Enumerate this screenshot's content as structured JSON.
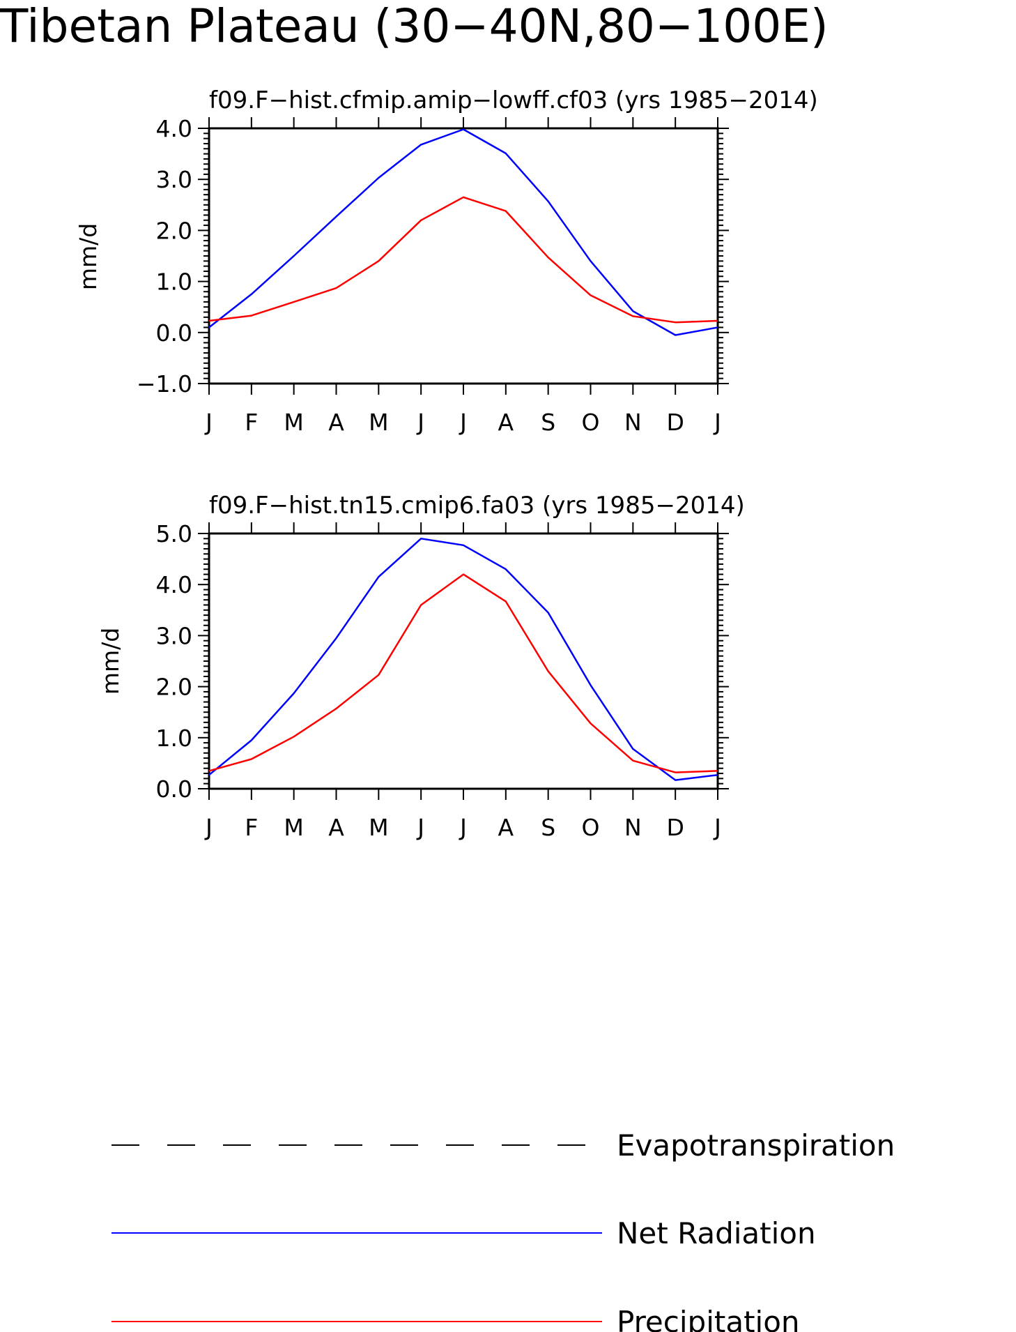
{
  "title": "Tibetan Plateau (30−40N,80−100E)",
  "legend": {
    "items": [
      {
        "label": "Evapotranspiration",
        "color": "#000000",
        "style": "dashed"
      },
      {
        "label": "Net Radiation",
        "color": "#0000ff",
        "style": "solid"
      },
      {
        "label": "Precipitation",
        "color": "#ff0000",
        "style": "solid"
      }
    ]
  },
  "chart_data": [
    {
      "type": "line",
      "title": "f09.F−hist.cfmip.amip−lowff.cf03 (yrs 1985−2014)",
      "ylabel": "mm/d",
      "xlabel": "",
      "categories": [
        "J",
        "F",
        "M",
        "A",
        "M",
        "J",
        "J",
        "A",
        "S",
        "O",
        "N",
        "D",
        "J"
      ],
      "ylim": [
        -1.0,
        4.0
      ],
      "yticks": [
        "−1.0",
        "0.0",
        "1.0",
        "2.0",
        "3.0",
        "4.0"
      ],
      "ytick_values": [
        -1,
        0,
        1,
        2,
        3,
        4
      ],
      "series": [
        {
          "name": "Net Radiation",
          "color": "#0000ff",
          "values": [
            0.1,
            0.75,
            1.5,
            2.27,
            3.03,
            3.68,
            3.98,
            3.51,
            2.57,
            1.4,
            0.42,
            -0.05,
            0.1
          ]
        },
        {
          "name": "Precipitation",
          "color": "#ff0000",
          "values": [
            0.23,
            0.33,
            0.6,
            0.87,
            1.4,
            2.2,
            2.65,
            2.38,
            1.47,
            0.73,
            0.32,
            0.2,
            0.23
          ]
        }
      ]
    },
    {
      "type": "line",
      "title": "f09.F−hist.tn15.cmip6.fa03 (yrs 1985−2014)",
      "ylabel": "mm/d",
      "xlabel": "",
      "categories": [
        "J",
        "F",
        "M",
        "A",
        "M",
        "J",
        "J",
        "A",
        "S",
        "O",
        "N",
        "D",
        "J"
      ],
      "ylim": [
        0.0,
        5.0
      ],
      "yticks": [
        "0.0",
        "1.0",
        "2.0",
        "3.0",
        "4.0",
        "5.0"
      ],
      "ytick_values": [
        0,
        1,
        2,
        3,
        4,
        5
      ],
      "series": [
        {
          "name": "Net Radiation",
          "color": "#0000ff",
          "values": [
            0.27,
            0.95,
            1.87,
            2.95,
            4.15,
            4.9,
            4.77,
            4.3,
            3.45,
            2.03,
            0.78,
            0.17,
            0.27
          ]
        },
        {
          "name": "Precipitation",
          "color": "#ff0000",
          "values": [
            0.35,
            0.58,
            1.02,
            1.57,
            2.23,
            3.6,
            4.2,
            3.67,
            2.3,
            1.28,
            0.55,
            0.32,
            0.35
          ]
        }
      ]
    }
  ]
}
